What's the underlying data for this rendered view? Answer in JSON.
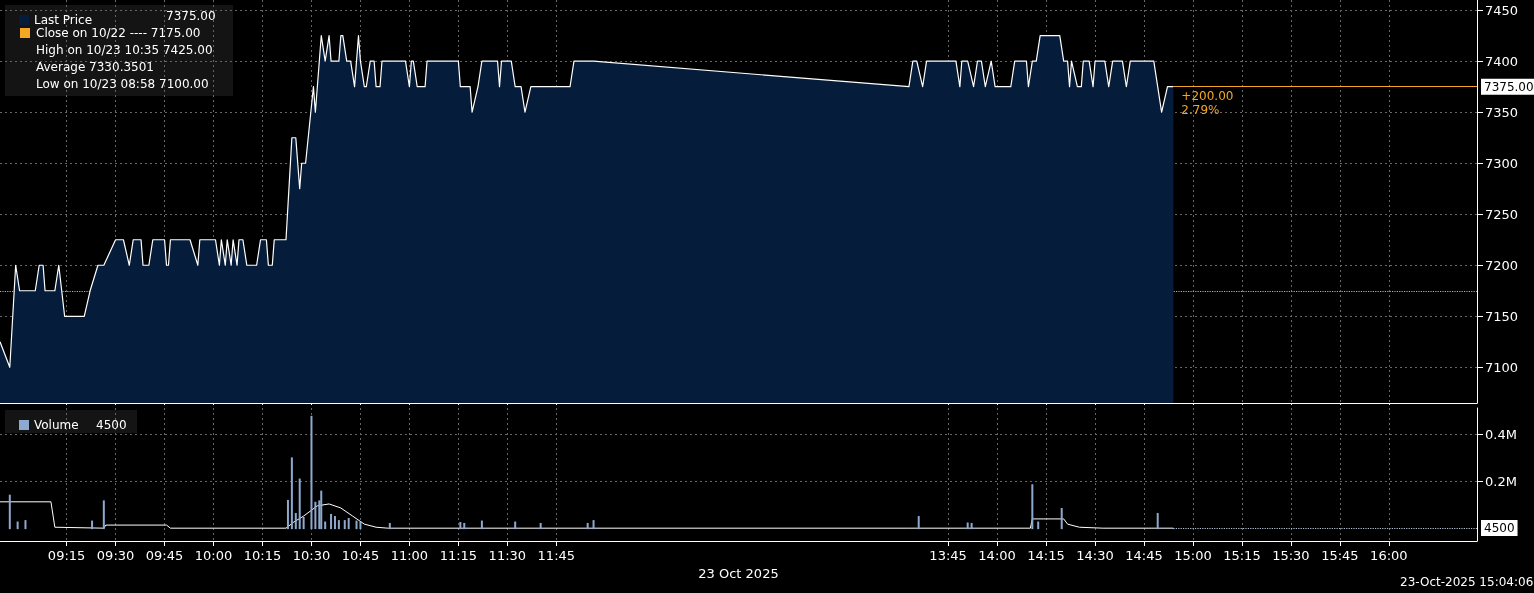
{
  "chart_data": [
    {
      "type": "area",
      "marker": "none",
      "grid": true,
      "legend": "top left",
      "tick_labels": "y",
      "xlim": [
        8.91,
        16.45
      ],
      "xticks": [
        {
          "value": 9.25,
          "label": null
        },
        {
          "value": 9.5,
          "label": null
        },
        {
          "value": 9.75,
          "label": null
        },
        {
          "value": 10,
          "label": null
        },
        {
          "value": 10.25,
          "label": null
        },
        {
          "value": 10.5,
          "label": null
        },
        {
          "value": 10.75,
          "label": null
        },
        {
          "value": 11,
          "label": null
        },
        {
          "value": 11.25,
          "label": null
        },
        {
          "value": 11.5,
          "label": null
        },
        {
          "value": 11.75,
          "label": null
        },
        {
          "value": 13.75,
          "label": null
        },
        {
          "value": 14,
          "label": null
        },
        {
          "value": 14.25,
          "label": null
        },
        {
          "value": 14.5,
          "label": null
        },
        {
          "value": 14.75,
          "label": null
        },
        {
          "value": 15,
          "label": null
        },
        {
          "value": 15.25,
          "label": null
        },
        {
          "value": 15.5,
          "label": null
        },
        {
          "value": 15.75,
          "label": null
        },
        {
          "value": 16,
          "label": null
        }
      ],
      "ylim": [
        7065,
        7460
      ],
      "yticks": [
        7100,
        7150,
        7200,
        7250,
        7300,
        7350,
        7400,
        7450
      ],
      "series": [
        {
          "name": "Last Price",
          "color": "#051d3b",
          "x": [
            8.91,
            8.96,
            8.99,
            9.01,
            9.09,
            9.11,
            9.13,
            9.14,
            9.19,
            9.21,
            9.24,
            9.34,
            9.37,
            9.41,
            9.44,
            9.5,
            9.54,
            9.57,
            9.59,
            9.63,
            9.64,
            9.67,
            9.69,
            9.75,
            9.76,
            9.77,
            9.78,
            9.88,
            9.92,
            9.93,
            10.01,
            10.03,
            10.04,
            10.06,
            10.07,
            10.09,
            10.1,
            10.12,
            10.13,
            10.15,
            10.17,
            10.19,
            10.22,
            10.24,
            10.27,
            10.28,
            10.3,
            10.31,
            10.37,
            10.4,
            10.42,
            10.44,
            10.45,
            10.47,
            10.51,
            10.52,
            10.55,
            10.57,
            10.59,
            10.6,
            10.64,
            10.65,
            10.66,
            10.68,
            10.7,
            10.72,
            10.74,
            10.75,
            10.77,
            10.78,
            10.8,
            10.82,
            10.83,
            10.85,
            10.86,
            10.98,
            11.0,
            11.01,
            11.02,
            11.04,
            11.08,
            11.09,
            11.25,
            11.26,
            11.31,
            11.32,
            11.35,
            11.37,
            11.45,
            11.46,
            11.47,
            11.52,
            11.54,
            11.57,
            11.59,
            11.62,
            11.82,
            11.84,
            11.94,
            13.55,
            13.57,
            13.59,
            13.62,
            13.64,
            13.79,
            13.81,
            13.82,
            13.85,
            13.88,
            13.9,
            13.92,
            13.94,
            13.97,
            13.99,
            14.07,
            14.09,
            14.15,
            14.16,
            14.18,
            14.2,
            14.22,
            14.32,
            14.34,
            14.36,
            14.37,
            14.38,
            14.41,
            14.43,
            14.44,
            14.47,
            14.49,
            14.5,
            14.55,
            14.57,
            14.59,
            14.64,
            14.66,
            14.68,
            14.8,
            14.84,
            14.87,
            14.9
          ],
          "values": [
            7125,
            7100,
            7200,
            7175,
            7175,
            7200,
            7200,
            7175,
            7175,
            7200,
            7150,
            7150,
            7175,
            7200,
            7200,
            7225,
            7225,
            7200,
            7225,
            7225,
            7200,
            7200,
            7225,
            7225,
            7200,
            7200,
            7225,
            7225,
            7200,
            7225,
            7225,
            7200,
            7225,
            7200,
            7225,
            7200,
            7225,
            7200,
            7225,
            7225,
            7200,
            7200,
            7200,
            7225,
            7225,
            7200,
            7200,
            7225,
            7225,
            7325,
            7325,
            7275,
            7300,
            7300,
            7375,
            7350,
            7425,
            7400,
            7425,
            7400,
            7400,
            7425,
            7425,
            7400,
            7400,
            7375,
            7425,
            7400,
            7375,
            7375,
            7400,
            7400,
            7375,
            7375,
            7400,
            7400,
            7375,
            7400,
            7400,
            7375,
            7375,
            7400,
            7400,
            7375,
            7375,
            7350,
            7375,
            7400,
            7400,
            7375,
            7400,
            7400,
            7375,
            7375,
            7350,
            7375,
            7375,
            7400,
            7400,
            7375,
            7400,
            7400,
            7375,
            7400,
            7400,
            7375,
            7400,
            7400,
            7375,
            7400,
            7400,
            7375,
            7400,
            7375,
            7375,
            7400,
            7400,
            7375,
            7400,
            7400,
            7425,
            7425,
            7400,
            7400,
            7375,
            7400,
            7375,
            7375,
            7400,
            7400,
            7375,
            7400,
            7400,
            7375,
            7400,
            7400,
            7375,
            7400,
            7400,
            7350,
            7375,
            7375
          ]
        }
      ],
      "ref_lines": [
        {
          "axis": "y",
          "value": 7175,
          "color": "#f5a623",
          "line_style": "dotted"
        },
        {
          "axis": "y",
          "value": 7375,
          "label": "7375.00",
          "color": "#f5a623",
          "line_style": "solid"
        }
      ],
      "annotations": [
        "7375.00",
        "Close on 10/22 ---- 7175.00",
        "High on 10/23 10:35 7425.00",
        "Average 7330.3501",
        "Low on 10/23 08:58 7100.00",
        {
          "text": "+200.00",
          "x": 14.9,
          "y": 7375
        },
        {
          "text": "2.79%",
          "x": 14.9,
          "y": 7375
        }
      ]
    },
    {
      "type": "bar",
      "grid": true,
      "legend": "top left",
      "xlabel": "23 Oct 2025",
      "xlim": [
        8.91,
        16.45
      ],
      "xticks": [
        {
          "value": 9.25,
          "label": "09:15"
        },
        {
          "value": 9.5,
          "label": "09:30"
        },
        {
          "value": 9.75,
          "label": "09:45"
        },
        {
          "value": 10,
          "label": "10:00"
        },
        {
          "value": 10.25,
          "label": "10:15"
        },
        {
          "value": 10.5,
          "label": "10:30"
        },
        {
          "value": 10.75,
          "label": "10:45"
        },
        {
          "value": 11,
          "label": "11:00"
        },
        {
          "value": 11.25,
          "label": "11:15"
        },
        {
          "value": 11.5,
          "label": "11:30"
        },
        {
          "value": 11.75,
          "label": "11:45"
        },
        {
          "value": 13.75,
          "label": "13:45"
        },
        {
          "value": 14,
          "label": "14:00"
        },
        {
          "value": 14.25,
          "label": "14:15"
        },
        {
          "value": 14.5,
          "label": "14:30"
        },
        {
          "value": 14.75,
          "label": "14:45"
        },
        {
          "value": 15,
          "label": "15:00"
        },
        {
          "value": 15.25,
          "label": "15:15"
        },
        {
          "value": 15.5,
          "label": "15:30"
        },
        {
          "value": 15.75,
          "label": "15:45"
        },
        {
          "value": 16,
          "label": "16:00"
        }
      ],
      "ylim": [
        -50000,
        510000
      ],
      "yticks": [
        {
          "value": 200000,
          "label": "0.2M"
        },
        {
          "value": 400000,
          "label": "0.4M"
        }
      ],
      "series": [
        {
          "name": "Volume",
          "color": "#8ea9cf",
          "x": [
            8.96,
            9.0,
            9.04,
            9.38,
            9.44,
            10.38,
            10.4,
            10.42,
            10.44,
            10.46,
            10.5,
            10.52,
            10.54,
            10.55,
            10.57,
            10.6,
            10.62,
            10.64,
            10.67,
            10.69,
            10.73,
            10.75,
            10.9,
            11.26,
            11.28,
            11.37,
            11.54,
            11.67,
            11.91,
            11.94,
            13.6,
            13.85,
            13.87,
            14.18,
            14.21,
            14.33,
            14.82,
            14.9
          ],
          "values": [
            145000,
            32000,
            38000,
            36000,
            121000,
            123000,
            302000,
            68000,
            213000,
            51000,
            477000,
            115000,
            121000,
            162000,
            32000,
            64000,
            55000,
            38000,
            38000,
            47000,
            36000,
            32000,
            26000,
            30000,
            26000,
            36000,
            32000,
            26000,
            26000,
            38000,
            55000,
            28000,
            26000,
            189000,
            32000,
            89000,
            68000,
            4500
          ]
        },
        {
          "type": "line",
          "color": "#ffffff",
          "x": [
            8.91,
            9.17,
            9.19,
            9.44,
            9.45,
            9.76,
            9.78,
            10.37,
            10.41,
            10.46,
            10.53,
            10.59,
            10.65,
            10.71,
            10.77,
            10.83,
            10.89,
            11.94,
            13.55,
            14.17,
            14.18,
            14.34,
            14.36,
            14.42,
            14.54,
            14.9
          ],
          "values": [
            115000,
            115000,
            8000,
            4000,
            17000,
            17000,
            4000,
            4000,
            30000,
            55000,
            98000,
            106000,
            89000,
            55000,
            21000,
            8000,
            4000,
            4000,
            4000,
            4000,
            43000,
            43000,
            21000,
            8000,
            4000,
            4000
          ]
        }
      ],
      "ref_lines": [
        {
          "axis": "y",
          "value": 4500,
          "label": "4500",
          "color": "#b8c4d6",
          "line_style": "dotted"
        }
      ],
      "annotations": [
        "4500",
        "23-Oct-2025 15:04:06"
      ]
    }
  ]
}
